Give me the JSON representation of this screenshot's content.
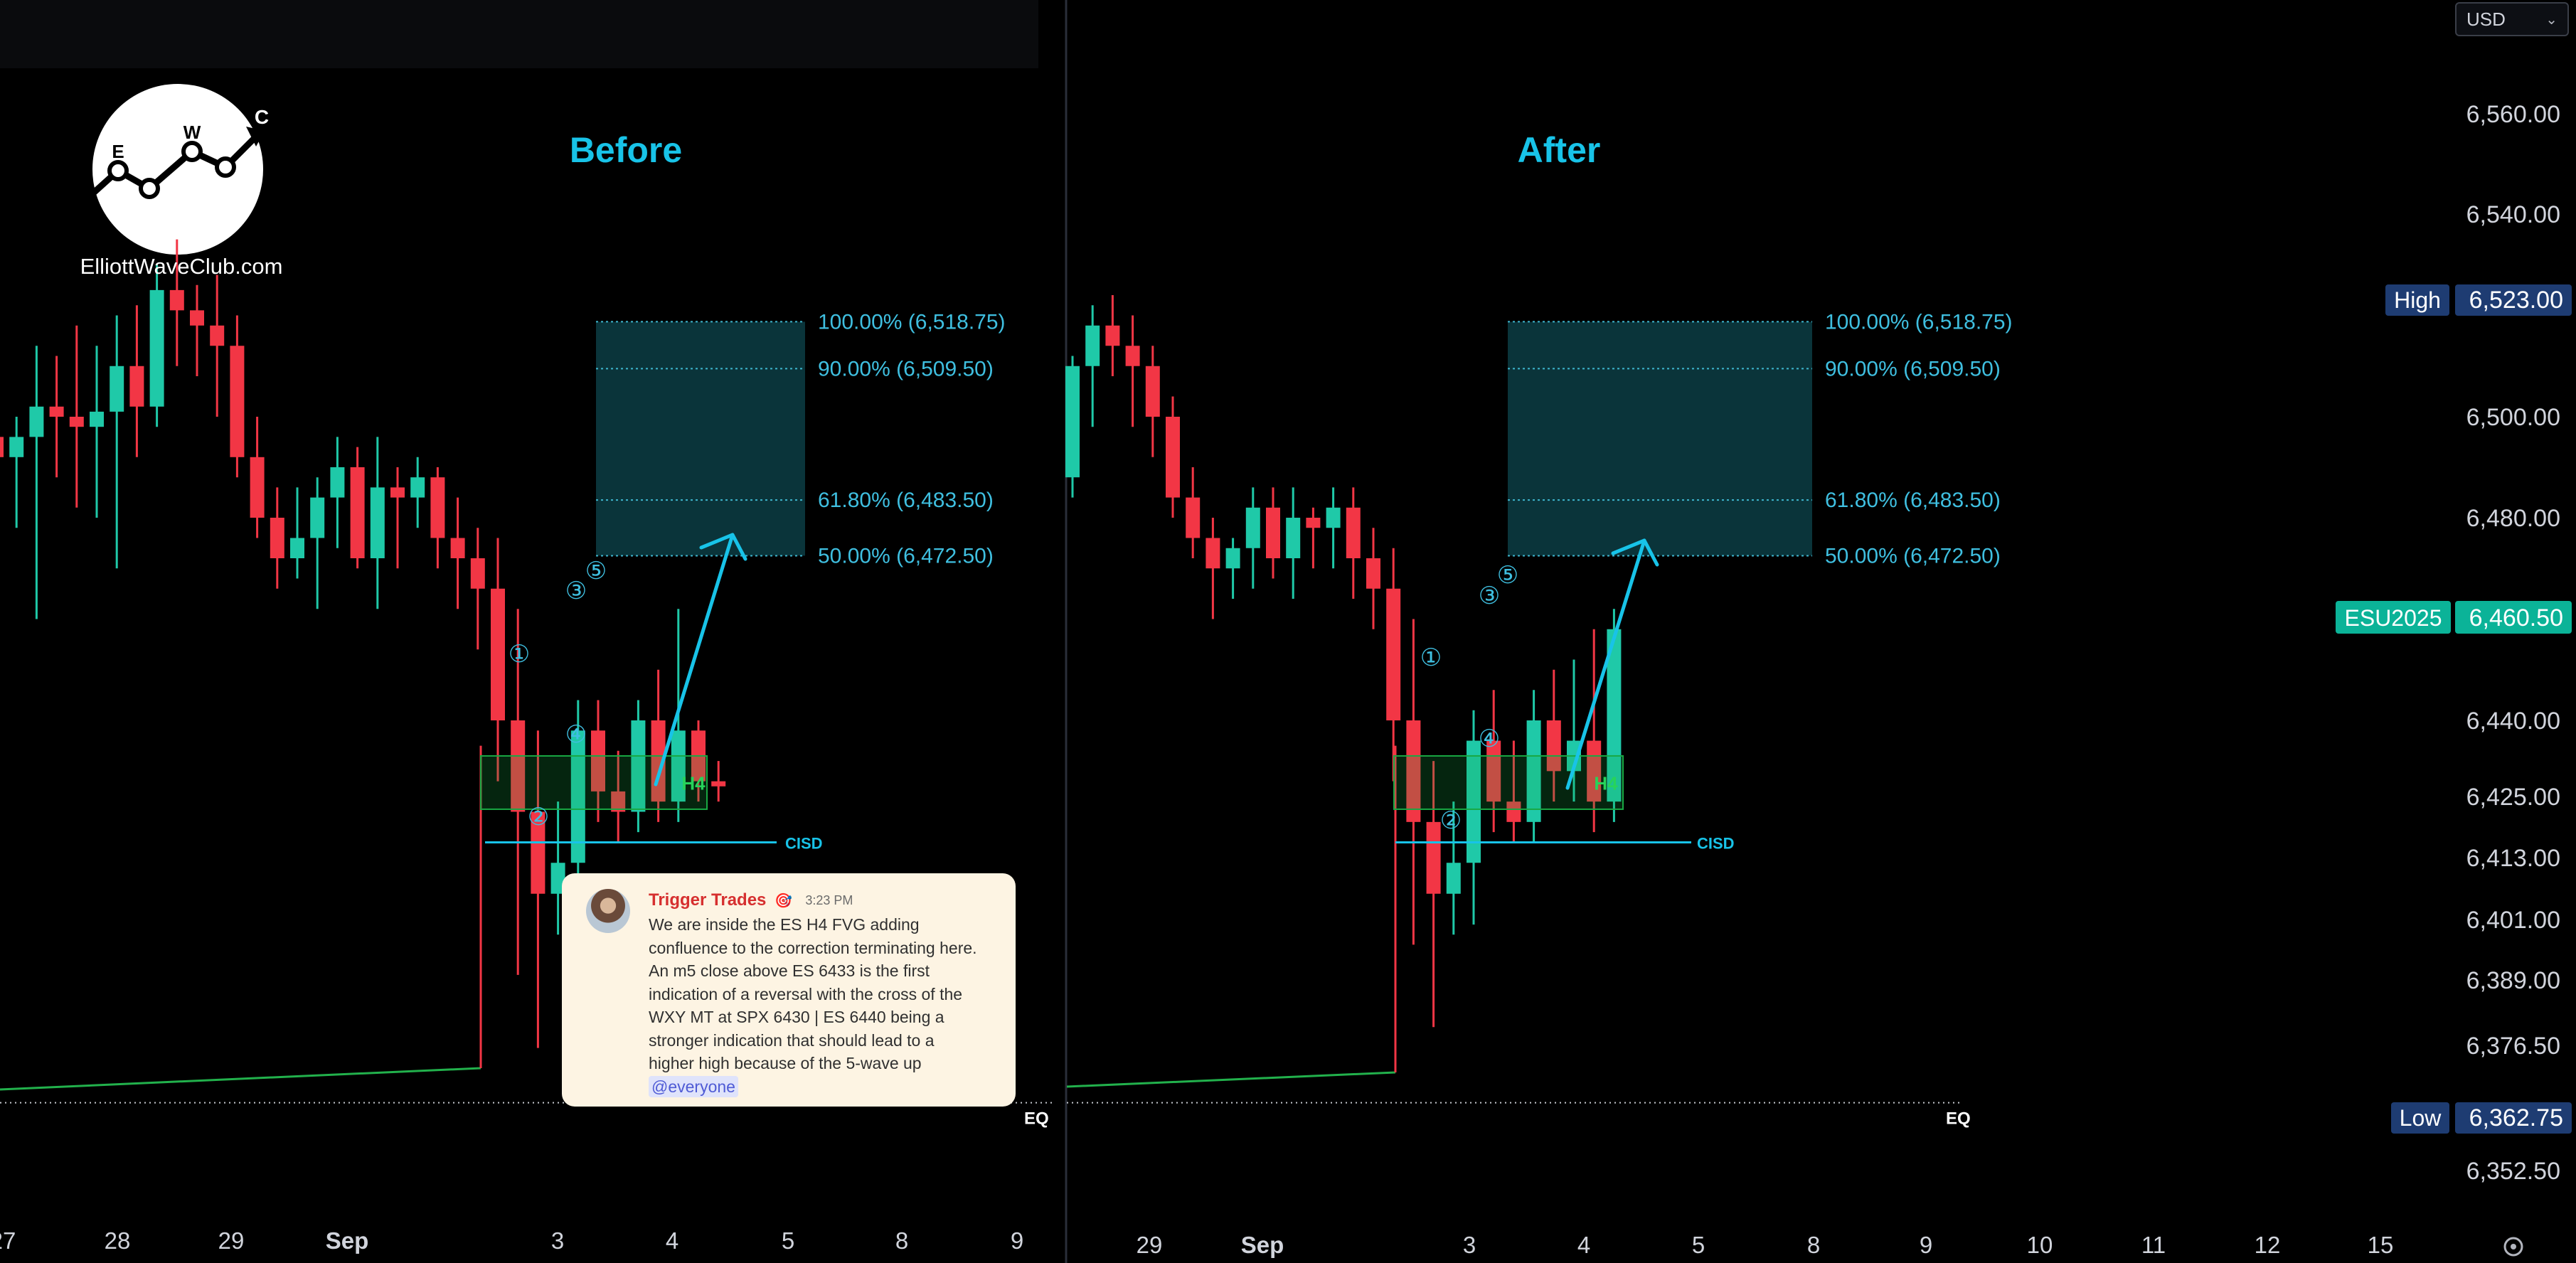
{
  "toolbar": {
    "currency": "USD"
  },
  "logo": {
    "letters": [
      "E",
      "W",
      "C"
    ],
    "site": "ElliottWaveClub.com"
  },
  "panels": [
    {
      "id": "before",
      "title": "Before"
    },
    {
      "id": "after",
      "title": "After"
    }
  ],
  "price_axis": {
    "labels": [
      "6,560.00",
      "6,540.00",
      "6,500.00",
      "6,480.00",
      "6,440.00",
      "6,425.00",
      "6,413.00",
      "6,401.00",
      "6,389.00",
      "6,376.50",
      "6,352.50"
    ],
    "high": {
      "label": "High",
      "value": "6,523.00"
    },
    "symbol": {
      "label": "ESU2025",
      "value": "6,460.50"
    },
    "low": {
      "label": "Low",
      "value": "6,362.75"
    }
  },
  "colors": {
    "up": "#1fc9a8",
    "down": "#f23645",
    "accent": "#18c3e8",
    "fvg": "#19a843",
    "zone": "#0b3a40"
  },
  "chart_data": [
    {
      "type": "candlestick",
      "title": "Before",
      "x_ticks": [
        "27",
        "28",
        "29",
        "Sep",
        "3",
        "4",
        "5",
        "8",
        "9"
      ],
      "fib_levels": [
        {
          "label": "100.00% (6,518.75)",
          "price": 6518.75
        },
        {
          "label": "90.00% (6,509.50)",
          "price": 6509.5
        },
        {
          "label": "61.80% (6,483.50)",
          "price": 6483.5
        },
        {
          "label": "50.00% (6,472.50)",
          "price": 6472.5
        }
      ],
      "annotations": {
        "fvg": "H4",
        "cisd": "CISD",
        "eq": "EQ",
        "waves": [
          "①",
          "②",
          "③",
          "④",
          "⑤"
        ]
      },
      "candles": [
        [
          6496,
          6502,
          6476,
          6492
        ],
        [
          6492,
          6500,
          6478,
          6496
        ],
        [
          6496,
          6514,
          6460,
          6502
        ],
        [
          6502,
          6512,
          6488,
          6500
        ],
        [
          6500,
          6518,
          6482,
          6498
        ],
        [
          6498,
          6514,
          6480,
          6501
        ],
        [
          6501,
          6520,
          6470,
          6510
        ],
        [
          6510,
          6522,
          6492,
          6502
        ],
        [
          6502,
          6530,
          6498,
          6525
        ],
        [
          6525,
          6535,
          6510,
          6521
        ],
        [
          6521,
          6526,
          6508,
          6518
        ],
        [
          6518,
          6528,
          6500,
          6514
        ],
        [
          6514,
          6520,
          6488,
          6492
        ],
        [
          6492,
          6500,
          6476,
          6480
        ],
        [
          6480,
          6486,
          6466,
          6472
        ],
        [
          6472,
          6486,
          6468,
          6476
        ],
        [
          6476,
          6488,
          6462,
          6484
        ],
        [
          6484,
          6496,
          6474,
          6490
        ],
        [
          6490,
          6494,
          6470,
          6472
        ],
        [
          6472,
          6496,
          6462,
          6486
        ],
        [
          6486,
          6490,
          6470,
          6484
        ],
        [
          6484,
          6492,
          6478,
          6488
        ],
        [
          6488,
          6490,
          6470,
          6476
        ],
        [
          6476,
          6484,
          6462,
          6472
        ],
        [
          6472,
          6478,
          6454,
          6466
        ],
        [
          6466,
          6476,
          6428,
          6440
        ],
        [
          6440,
          6462,
          6390,
          6422
        ],
        [
          6422,
          6438,
          6376,
          6406
        ],
        [
          6406,
          6424,
          6398,
          6412
        ],
        [
          6412,
          6444,
          6400,
          6438
        ],
        [
          6438,
          6444,
          6420,
          6426
        ],
        [
          6426,
          6434,
          6416,
          6422
        ],
        [
          6422,
          6444,
          6418,
          6440
        ],
        [
          6440,
          6450,
          6420,
          6424
        ],
        [
          6424,
          6462,
          6420,
          6438
        ],
        [
          6438,
          6440,
          6424,
          6428
        ],
        [
          6428,
          6432,
          6424,
          6427
        ]
      ]
    },
    {
      "type": "candlestick",
      "title": "After",
      "x_ticks": [
        "29",
        "Sep",
        "3",
        "4",
        "5",
        "8",
        "9",
        "10",
        "11",
        "12",
        "15"
      ],
      "fib_levels": [
        {
          "label": "100.00% (6,518.75)",
          "price": 6518.75
        },
        {
          "label": "90.00% (6,509.50)",
          "price": 6509.5
        },
        {
          "label": "61.80% (6,483.50)",
          "price": 6483.5
        },
        {
          "label": "50.00% (6,472.50)",
          "price": 6472.5
        }
      ],
      "annotations": {
        "fvg": "H4",
        "cisd": "CISD",
        "eq": "EQ",
        "waves": [
          "①",
          "②",
          "③",
          "④",
          "⑤"
        ]
      },
      "candles": [
        [
          6488,
          6512,
          6484,
          6510
        ],
        [
          6510,
          6522,
          6498,
          6518
        ],
        [
          6518,
          6524,
          6508,
          6514
        ],
        [
          6514,
          6520,
          6498,
          6510
        ],
        [
          6510,
          6514,
          6492,
          6500
        ],
        [
          6500,
          6504,
          6480,
          6484
        ],
        [
          6484,
          6490,
          6472,
          6476
        ],
        [
          6476,
          6480,
          6460,
          6470
        ],
        [
          6470,
          6476,
          6464,
          6474
        ],
        [
          6474,
          6486,
          6466,
          6482
        ],
        [
          6482,
          6486,
          6468,
          6472
        ],
        [
          6472,
          6486,
          6464,
          6480
        ],
        [
          6480,
          6482,
          6470,
          6478
        ],
        [
          6478,
          6486,
          6470,
          6482
        ],
        [
          6482,
          6486,
          6464,
          6472
        ],
        [
          6472,
          6478,
          6458,
          6466
        ],
        [
          6466,
          6474,
          6428,
          6440
        ],
        [
          6440,
          6460,
          6396,
          6420
        ],
        [
          6420,
          6432,
          6380,
          6406
        ],
        [
          6406,
          6424,
          6398,
          6412
        ],
        [
          6412,
          6442,
          6400,
          6436
        ],
        [
          6436,
          6446,
          6418,
          6424
        ],
        [
          6424,
          6436,
          6416,
          6420
        ],
        [
          6420,
          6446,
          6416,
          6440
        ],
        [
          6440,
          6450,
          6424,
          6430
        ],
        [
          6430,
          6452,
          6424,
          6436
        ],
        [
          6436,
          6458,
          6418,
          6424
        ],
        [
          6424,
          6462,
          6420,
          6458
        ]
      ]
    }
  ],
  "discord": {
    "author": "Trigger Trades",
    "badge": "🎯",
    "time": "3:23 PM",
    "lines": [
      "We are inside the ES H4 FVG adding",
      "confluence to the correction terminating here.",
      "An  m5 close above ES 6433 is the first",
      "indication of a reversal with the cross of the",
      "WXY MT at SPX 6430 | ES 6440 being a",
      "stronger indication that should lead to a",
      "higher high because of the 5-wave up"
    ],
    "mention": "@everyone"
  }
}
